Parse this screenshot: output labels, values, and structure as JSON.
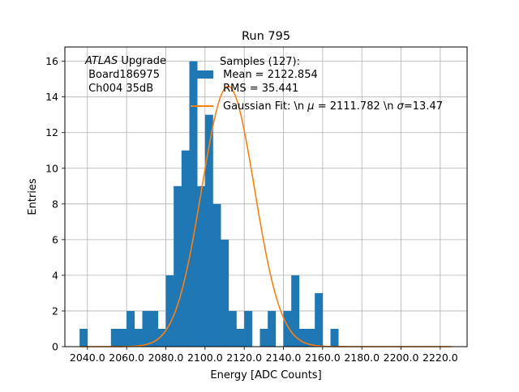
{
  "chart_data": {
    "type": "bar",
    "title": "Run 795",
    "xlabel": "Energy [ADC Counts]",
    "ylabel": "Entries",
    "xlim": [
      2028.5,
      2233.7
    ],
    "ylim": [
      0,
      16.8
    ],
    "grid": true,
    "x_ticks": [
      2040,
      2060,
      2080,
      2100,
      2120,
      2140,
      2160,
      2180,
      2200,
      2220
    ],
    "x_tick_labels": [
      "2040.0",
      "2060.0",
      "2080.0",
      "2100.0",
      "2120.0",
      "2140.0",
      "2160.0",
      "2180.0",
      "2200.0",
      "2220.0"
    ],
    "y_ticks": [
      0,
      2,
      4,
      6,
      8,
      10,
      12,
      14,
      16
    ],
    "y_tick_labels": [
      "0",
      "2",
      "4",
      "6",
      "8",
      "10",
      "12",
      "14",
      "16"
    ],
    "bin_start": 2036,
    "bin_width": 4,
    "histogram_values": [
      1,
      0,
      0,
      0,
      1,
      1,
      2,
      1,
      2,
      2,
      1,
      4,
      9,
      11,
      16,
      9,
      13,
      8,
      6,
      2,
      1,
      2,
      0,
      1,
      2,
      0,
      2,
      4,
      1,
      1,
      3,
      0,
      1
    ],
    "bar_color": "#1f77b4",
    "fit": {
      "name": "Gaussian Fit: \\n $\\mu$ = 2111.782 \\n $\\sigma$=13.47",
      "amplitude": 14.6,
      "mean": 2111.782,
      "sigma": 13.47,
      "color": "#ff7f0e"
    },
    "legend": {
      "placement": "top-right",
      "hist_lines": [
        "Samples (127):",
        " Mean = 2122.854",
        " RMS = 35.441"
      ],
      "fit_label_prefix": "Gaussian Fit: \\n ",
      "fit_label_mu": "μ",
      "fit_label_middle": " = 2111.782 \\n ",
      "fit_label_sigma": "σ",
      "fit_label_suffix": "=13.47"
    },
    "annotation": {
      "italic": "ATLAS",
      "line1_rest": " Upgrade",
      "line2": " Board186975",
      "line3": " Ch004 35dB"
    }
  }
}
